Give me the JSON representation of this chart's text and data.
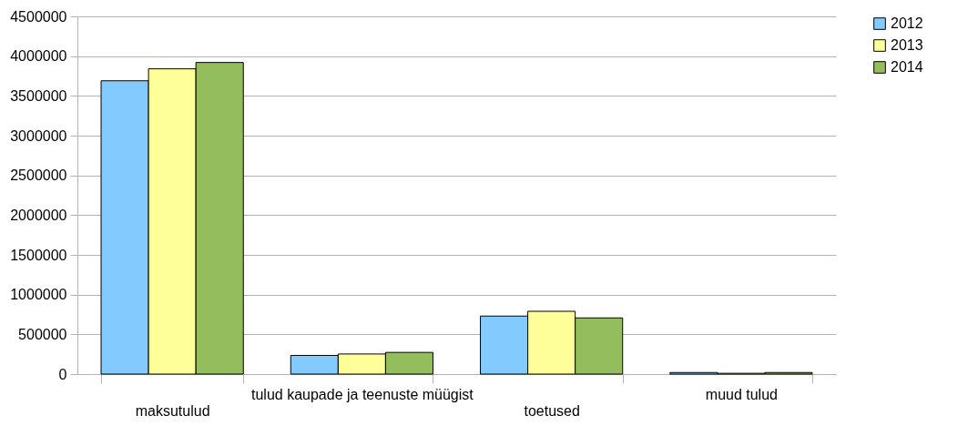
{
  "chart_data": {
    "type": "bar",
    "categories": [
      "maksutulud",
      "tulud kaupade ja teenuste müügist",
      "toetused",
      "muud tulud"
    ],
    "series": [
      {
        "name": "2012",
        "color": "#83caff",
        "values": [
          3690000,
          235000,
          730000,
          20000
        ]
      },
      {
        "name": "2013",
        "color": "#ffff99",
        "values": [
          3840000,
          253000,
          790000,
          10000
        ]
      },
      {
        "name": "2014",
        "color": "#94bd5e",
        "values": [
          3920000,
          273000,
          707000,
          20000
        ]
      }
    ],
    "ylim": [
      0,
      4500000
    ],
    "yticks": [
      0,
      500000,
      1000000,
      1500000,
      2000000,
      2500000,
      3000000,
      3500000,
      4000000,
      4500000
    ],
    "grid": "y",
    "legend": "right"
  }
}
